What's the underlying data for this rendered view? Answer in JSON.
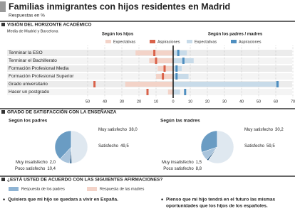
{
  "title": "Familias inmigrantes con hijos residentes en Madrid",
  "subtitle": "Respuestas en %",
  "sections": [
    "VISIÓN DEL HORIZONTE ACADÉMICO",
    "GRADO DE SATISFACCIÓN CON LA ENSEÑANZA",
    "¿ESTÁ USTED DE ACUERDO CON LAS SIGUIENTES AFIRMACIONES?"
  ],
  "chart_data": [
    {
      "type": "bar",
      "subtitle": "Media de Madrid y Barcelona",
      "categories": [
        "Terminar la ESO",
        "Terminar el Bachillerato",
        "Formación Profesional Media",
        "Formación Profesional Superior",
        "Grado universitario",
        "Hacer un postgrado"
      ],
      "grid": true,
      "panels": [
        {
          "title": "Según los hijos",
          "xlim": [
            0,
            50
          ],
          "xticks": [
            50,
            40,
            30,
            20,
            10
          ],
          "series": [
            {
              "name": "Expectativas",
              "color": "#f3d3c8",
              "values": [
                22,
                14,
                9,
                10,
                28,
                3
              ]
            },
            {
              "name": "Aspiraciones",
              "color": "#d9624a",
              "values": [
                11,
                10,
                5,
                6,
                46,
                15
              ]
            }
          ]
        },
        {
          "title": "Según los padres / madres",
          "xlim": [
            0,
            70
          ],
          "xticks": [
            0,
            10,
            20,
            30,
            40,
            50,
            60,
            70
          ],
          "series": [
            {
              "name": "Expectativas",
              "color": "#c8dbe9",
              "values": [
                8,
                12,
                5,
                9,
                62,
                4
              ]
            },
            {
              "name": "Aspiraciones",
              "color": "#4f8fc0",
              "values": [
                3,
                6,
                2,
                2,
                61,
                7
              ]
            }
          ]
        }
      ]
    },
    {
      "type": "pie",
      "title": "Según los padres",
      "categories": [
        "Muy satisfecho",
        "Satisfecho",
        "Muy insatisfecho",
        "Poco satisfecho"
      ],
      "values": [
        38.0,
        49.5,
        2.0,
        10.4
      ],
      "value_labels": [
        "38,0",
        "49,5",
        "2,0",
        "10,4"
      ],
      "colors": [
        "#6a9cc3",
        "#dfe8f0",
        "#2f5f8a",
        "#a9c4dc"
      ]
    },
    {
      "type": "pie",
      "title": "Según las madres",
      "categories": [
        "Muy satisfecho",
        "Satisfecho",
        "Muy insatisfecho",
        "Poco satisfecho"
      ],
      "values": [
        30.2,
        59.5,
        1.5,
        8.8
      ],
      "value_labels": [
        "30,2",
        "59,5",
        "1,5",
        "8,8"
      ],
      "colors": [
        "#6a9cc3",
        "#dfe8f0",
        "#2f5f8a",
        "#a9c4dc"
      ]
    }
  ],
  "agreement": {
    "legend": [
      {
        "name": "Respuesta de los padres",
        "color": "#8fb4d4"
      },
      {
        "name": "Respuesta de las madres",
        "color": "#f3d3c8"
      }
    ],
    "statements": [
      [
        "Quisiera que mi hijo se quedara a vivir en España."
      ],
      [
        "Pienso que mi hijo tendrá en el futuro las mismas",
        "oportunidades que los hijos de los españoles."
      ]
    ]
  }
}
